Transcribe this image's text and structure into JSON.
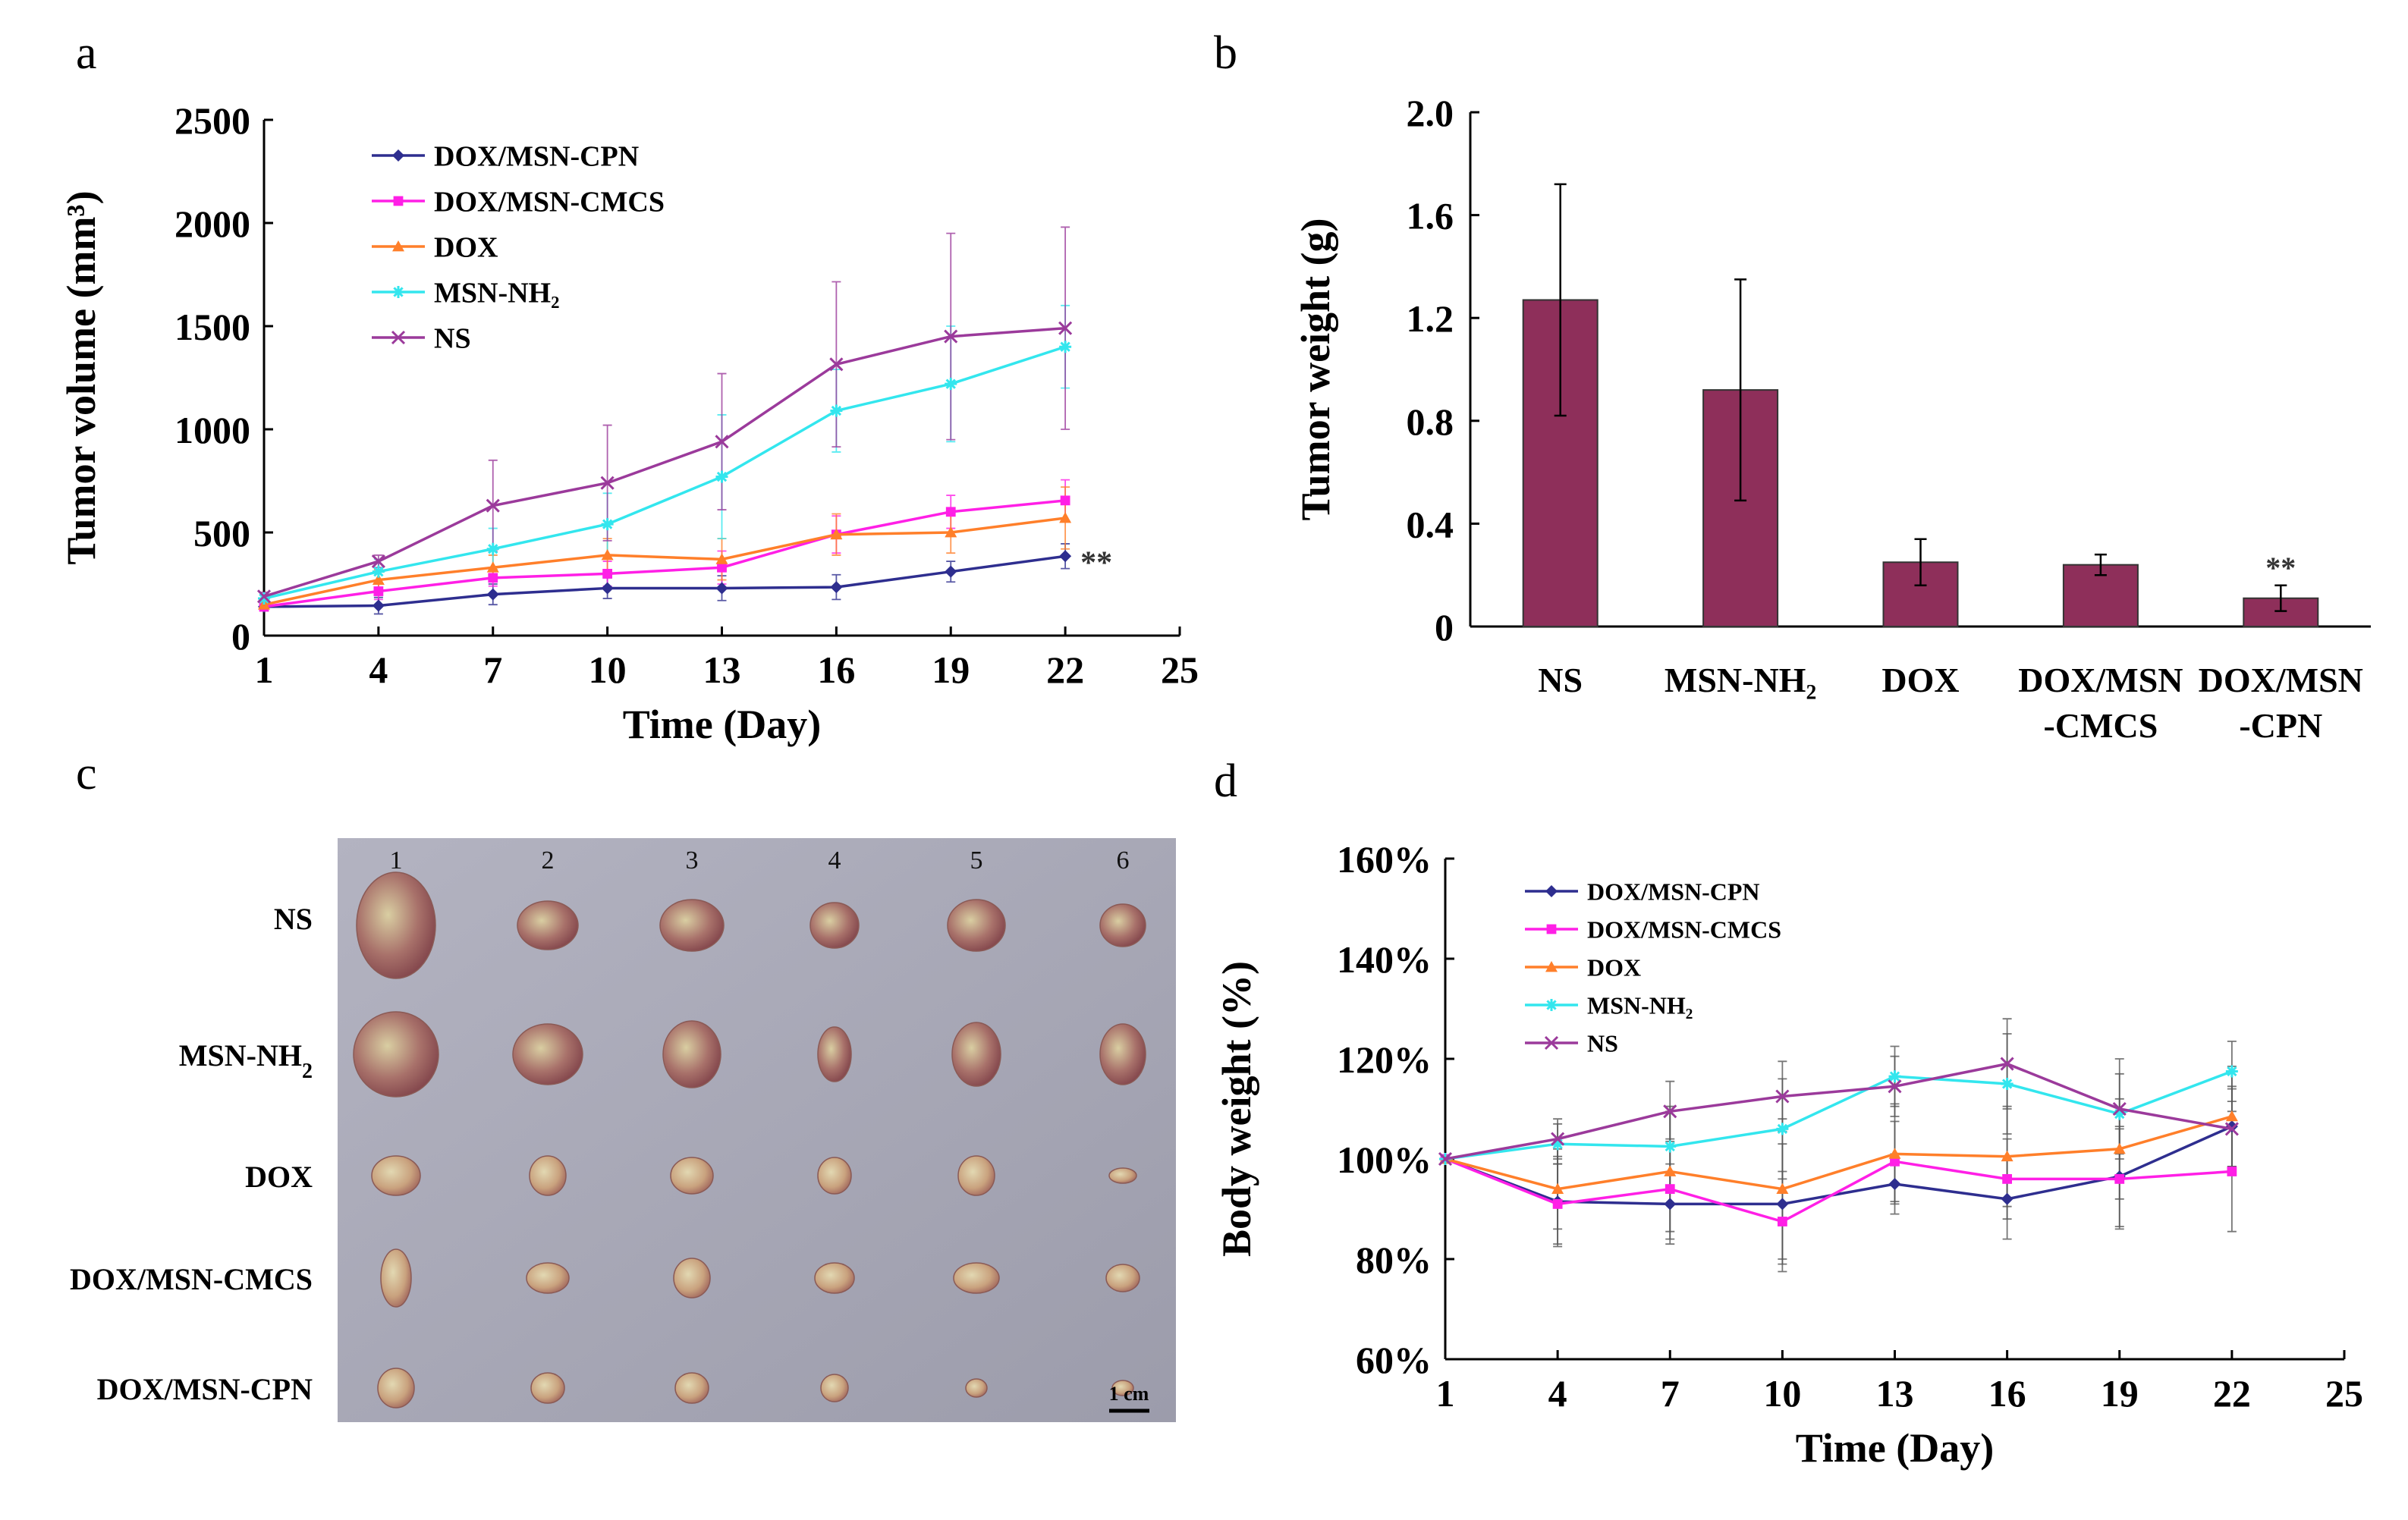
{
  "panels": {
    "a": "a",
    "b": "b",
    "c": "c",
    "d": "d"
  },
  "colors": {
    "DOX/MSN-CPN": "#2e2e8f",
    "DOX/MSN-CMCS": "#ff1fe6",
    "DOX": "#ff7f2a",
    "MSN-NH2": "#33e6ee",
    "NS": "#9b3a9b",
    "bar": "#8e2f5a"
  },
  "photo": {
    "columns": [
      "1",
      "2",
      "3",
      "4",
      "5",
      "6"
    ],
    "rows": [
      "NS",
      "MSN-NH2",
      "DOX",
      "DOX/MSN-CMCS",
      "DOX/MSN-CPN"
    ],
    "scale_bar": "1 cm"
  },
  "chart_data": [
    {
      "id": "a",
      "type": "line",
      "xlabel": "Time (Day)",
      "ylabel": "Tumor volume (mm³)",
      "xlim": [
        1,
        25
      ],
      "ylim": [
        0,
        2500
      ],
      "xticks": [
        1,
        4,
        7,
        10,
        13,
        16,
        19,
        22,
        25
      ],
      "yticks": [
        0,
        500,
        1000,
        1500,
        2000,
        2500
      ],
      "x": [
        1,
        4,
        7,
        10,
        13,
        16,
        19,
        22
      ],
      "series": [
        {
          "name": "DOX/MSN-CPN",
          "marker": "diamond",
          "values": [
            140,
            145,
            200,
            230,
            230,
            235,
            310,
            385
          ],
          "errors": [
            20,
            40,
            50,
            50,
            60,
            60,
            50,
            60
          ]
        },
        {
          "name": "DOX/MSN-CMCS",
          "marker": "square",
          "values": [
            140,
            215,
            280,
            300,
            330,
            490,
            600,
            655
          ],
          "errors": [
            20,
            40,
            40,
            60,
            80,
            90,
            80,
            100
          ]
        },
        {
          "name": "DOX",
          "marker": "triangle",
          "values": [
            150,
            270,
            330,
            390,
            370,
            490,
            500,
            570
          ],
          "errors": [
            20,
            50,
            60,
            80,
            100,
            100,
            100,
            150
          ]
        },
        {
          "name": "MSN-NH₂",
          "marker": "star",
          "values": [
            180,
            310,
            420,
            540,
            770,
            1090,
            1220,
            1400
          ],
          "errors": [
            20,
            60,
            100,
            150,
            300,
            200,
            280,
            200
          ]
        },
        {
          "name": "NS",
          "marker": "x",
          "values": [
            190,
            360,
            630,
            740,
            940,
            1315,
            1450,
            1490
          ],
          "errors": [
            20,
            30,
            220,
            280,
            330,
            400,
            500,
            490
          ]
        }
      ],
      "annotations": [
        "**"
      ]
    },
    {
      "id": "b",
      "type": "bar",
      "ylabel": "Tumor weight (g)",
      "ylim": [
        0,
        2.0
      ],
      "yticks": [
        "0",
        "0.4",
        "0.8",
        "1.2",
        "1.6",
        "2.0"
      ],
      "categories": [
        [
          "NS"
        ],
        [
          "MSN-NH₂"
        ],
        [
          "DOX"
        ],
        [
          "DOX/MSN",
          "-CMCS"
        ],
        [
          "DOX/MSN",
          "-CPN"
        ]
      ],
      "values": [
        1.27,
        0.92,
        0.25,
        0.24,
        0.11
      ],
      "errors": [
        0.45,
        0.43,
        0.09,
        0.04,
        0.05
      ],
      "annotations": [
        "**"
      ]
    },
    {
      "id": "d",
      "type": "line",
      "xlabel": "Time (Day)",
      "ylabel": "Body weight (%)",
      "xlim": [
        1,
        25
      ],
      "ylim": [
        60,
        160
      ],
      "xticks": [
        1,
        4,
        7,
        10,
        13,
        16,
        19,
        22,
        25
      ],
      "yticks": [
        "60%",
        "80%",
        "100%",
        "120%",
        "140%",
        "160%"
      ],
      "x": [
        1,
        4,
        7,
        10,
        13,
        16,
        19,
        22
      ],
      "series": [
        {
          "name": "DOX/MSN-CPN",
          "marker": "diamond",
          "values": [
            100,
            91.5,
            91,
            91,
            95,
            92,
            96.5,
            106.5
          ],
          "errors": [
            0,
            9,
            8,
            12,
            6,
            8,
            10,
            8
          ]
        },
        {
          "name": "DOX/MSN-CMCS",
          "marker": "square",
          "values": [
            100,
            91,
            94,
            87.5,
            99.5,
            96,
            96,
            97.5
          ],
          "errors": [
            0,
            8,
            10,
            10,
            8,
            8,
            10,
            12
          ]
        },
        {
          "name": "DOX",
          "marker": "triangle",
          "values": [
            100,
            94,
            97.5,
            94,
            101,
            100.5,
            102,
            108.5
          ],
          "errors": [
            0,
            8,
            12,
            14,
            10,
            10,
            10,
            10
          ]
        },
        {
          "name": "MSN-NH₂",
          "marker": "star",
          "values": [
            100,
            103,
            102.5,
            106,
            116.5,
            115,
            109,
            117.5
          ],
          "errors": [
            0,
            4,
            8,
            10,
            6,
            10,
            8,
            6
          ]
        },
        {
          "name": "NS",
          "marker": "x",
          "values": [
            100,
            104,
            109.5,
            112.5,
            114.5,
            119,
            110,
            106
          ],
          "errors": [
            0,
            4,
            6,
            7,
            6,
            9,
            10,
            8
          ]
        }
      ]
    }
  ]
}
